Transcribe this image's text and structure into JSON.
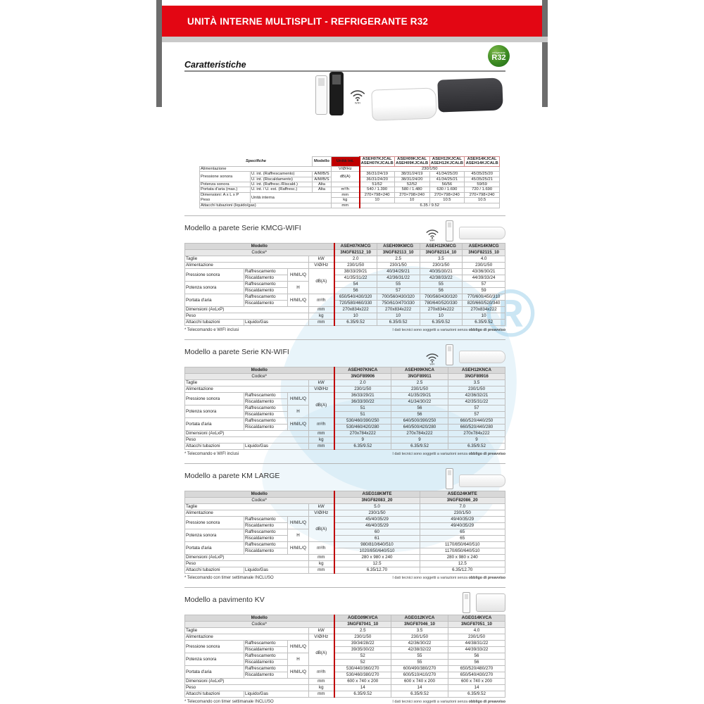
{
  "banner": {
    "title": "UNITÀ INTERNE MULTISPLIT - REFRIGERANTE R32"
  },
  "caratteristiche_title": "Caratteristiche",
  "r32_badge": {
    "small": "refrigerante",
    "big": "R32"
  },
  "wifi_label": "WIFI",
  "colors": {
    "banner_red": "#e30613",
    "table_red": "#c00000",
    "badge_green": "#2e7d1e",
    "watermark_blue": "#aed8ed",
    "header_gray": "#d8d8d8"
  },
  "labels": {
    "modello": "Modello",
    "codice": "Codice*",
    "taglie": "Taglie",
    "kw": "kW",
    "alimentazione": "Alimentazione",
    "vhz": "V/Ø/Hz",
    "pressione": "Pressione sonora",
    "raffrescamento": "Raffrescamento",
    "riscaldamento": "Riscaldamento",
    "hmlq": "H/M/L/Q",
    "dba": "dB(A)",
    "potenza": "Potenza sonora",
    "h": "H",
    "portata": "Portata d'aria",
    "m3h": "m³/h",
    "dimensioni": "Dimensioni (AxLxP)",
    "mm": "mm",
    "peso": "Peso",
    "kg": "kg",
    "attacchi": "Attacchi tubazioni",
    "liquidogas": "Liquido/Gas"
  },
  "spec": {
    "title": "Specifiche",
    "modello": "Modello",
    "unita_int": "Unità int.",
    "models": [
      "ASEH07KJCAL\nASEH07KJCALB",
      "ASEH09KJCAL\nASEH09KJCALB",
      "ASEH12KJCAL\nASEH12KJCALB",
      "ASEH14KJCAL\nASEH14KJCALB"
    ],
    "rows": {
      "alimentazione": {
        "label": "Alimentazione",
        "unit": "V/Ø/Hz",
        "value": "230/1/50"
      },
      "pressione": {
        "label": "Pressione sonora",
        "sub_raff": "U. int. (Raffrescamento)",
        "sub_risc": "U. int. (Riscaldamento)",
        "mode": "A/M/B/S",
        "unit": "dB(A)",
        "raff": [
          "36/31/24/19",
          "38/31/24/19",
          "41/34/25/20",
          "45/35/25/20"
        ],
        "risc": [
          "36/31/24/20",
          "38/31/24/20",
          "41/34/25/21",
          "45/35/25/21"
        ]
      },
      "potenza": {
        "label": "Potenza sonora",
        "sub": "U. int. (Raffresc./Riscald.)",
        "mode": "Alta",
        "values": [
          "51/52",
          "52/52",
          "56/56",
          "59/59"
        ]
      },
      "portata": {
        "label": "Portata d'aria (max.)",
        "sub": "U. int. / U. est. (Raffresc.)",
        "mode": "Alta",
        "unit": "m³/h",
        "values": [
          "540 / 1.390",
          "580 / 1.480",
          "630 / 1.690",
          "720 / 1.690"
        ]
      },
      "dimensioni_peso": {
        "label": "Dimensioni: A x L x P\nPeso",
        "sub": "Unità interna",
        "unit_mm": "mm",
        "unit_kg": "kg",
        "mm_values": [
          "270×798×240",
          "270×798×240",
          "270×798×240",
          "270×798×240"
        ],
        "kg_values": [
          "10",
          "10",
          "10.5",
          "10.5"
        ]
      },
      "attacchi": {
        "label": "Attacchi tubazioni (liquido/gas)",
        "unit": "mm",
        "value": "6.35 / 9.52"
      }
    }
  },
  "tech_note": {
    "prefix": "I dati tecnici sono soggetti a variazioni senza ",
    "bold": "obbligo di preavviso"
  },
  "sections": [
    {
      "title": "Modello a parete Serie KMCG-WIFI",
      "has_wifi_icon": true,
      "floor": false,
      "models": [
        "ASEH07KMCG",
        "ASEH09KMCG",
        "ASEH12KMCG",
        "ASEH14KMCG"
      ],
      "codici": [
        "3NGF82112_10",
        "3NGF82113_10",
        "3NGF82114_10",
        "3NGF82115_10"
      ],
      "taglie": [
        "2.0",
        "2.5",
        "3.5",
        "4.0"
      ],
      "alimentazione": [
        "230/1/50",
        "230/1/50",
        "230/1/50",
        "230/1/50"
      ],
      "pressione_raff": [
        "38/33/29/21",
        "40/34/29/21",
        "40/35/30/21",
        "43/36/30/21"
      ],
      "pressione_risc": [
        "41/35/31/22",
        "42/36/31/22",
        "42/38/33/22",
        "44/39/33/24"
      ],
      "potenza_raff": [
        "54",
        "55",
        "55",
        "57"
      ],
      "potenza_risc": [
        "56",
        "57",
        "56",
        "59"
      ],
      "portata_raff": [
        "650/540/430/320",
        "700/560/430/320",
        "700/560/430/320",
        "770/600/450/310"
      ],
      "portata_risc": [
        "720/580/460/330",
        "750/610/470/330",
        "780/640/520/330",
        "820/660/520/340"
      ],
      "dimensioni": [
        "270x834x222",
        "270x834x222",
        "270x834x222",
        "270x834x222"
      ],
      "peso": [
        "10",
        "10",
        "10",
        "10"
      ],
      "attacchi": [
        "6.35/9.52",
        "6.35/9.52",
        "6.35/9.52",
        "6.35/9.52"
      ],
      "footnote": "* Telecomando e WIFI inclusi"
    },
    {
      "title": "Modello a parete Serie KN-WIFI",
      "has_wifi_icon": true,
      "floor": false,
      "models": [
        "ASEH07KNCA",
        "ASEH09KNCA",
        "ASEH12KNCA"
      ],
      "codici": [
        "3NGF89906",
        "3NGF89911",
        "3NGF89916"
      ],
      "taglie": [
        "2.0",
        "2.5",
        "3.5"
      ],
      "alimentazione": [
        "230/1/50",
        "230/1/50",
        "230/1/50"
      ],
      "pressione_raff": [
        "36/33/29/21",
        "41/35/29/21",
        "42/36/32/21"
      ],
      "pressione_risc": [
        "36/33/30/22",
        "41/34/30/22",
        "42/35/31/22"
      ],
      "potenza_raff": [
        "51",
        "56",
        "57"
      ],
      "potenza_risc": [
        "51",
        "56",
        "57"
      ],
      "portata_raff": [
        "530/460/390/250",
        "640/500/390/250",
        "660/520/440/250"
      ],
      "portata_risc": [
        "530/460/420/280",
        "640/500/420/280",
        "660/520/440/280"
      ],
      "dimensioni": [
        "270x784x222",
        "270x784x222",
        "270x784x222"
      ],
      "peso": [
        "9",
        "9",
        "9"
      ],
      "attacchi": [
        "6.35/9.52",
        "6.35/9.52",
        "6.35/9.52"
      ],
      "footnote": "* Telecomando e WIFI inclusi"
    },
    {
      "title": "Modello a parete KM LARGE",
      "has_wifi_icon": false,
      "floor": false,
      "models": [
        "ASEG18KMTE",
        "ASEG24KMTE"
      ],
      "codici": [
        "3NGF82083_20",
        "3NGF82086_20"
      ],
      "taglie": [
        "5.0",
        "7.0"
      ],
      "alimentazione": [
        "230/1/50",
        "230/1/50"
      ],
      "pressione_raff": [
        "45/40/35/29",
        "49/40/35/29"
      ],
      "pressione_risc": [
        "46/40/35/29",
        "49/40/35/29"
      ],
      "potenza_raff": [
        "60",
        "65"
      ],
      "potenza_risc": [
        "61",
        "65"
      ],
      "portata_raff": [
        "980/810/640/510",
        "1170/850/640/510"
      ],
      "portata_risc": [
        "1020/850/640/510",
        "1170/850/640/510"
      ],
      "dimensioni": [
        "280 x 980 x 240",
        "280 x 980 x 240"
      ],
      "peso": [
        "12.5",
        "12.5"
      ],
      "attacchi": [
        "6.35/12.70",
        "6.35/12.70"
      ],
      "footnote": "* Telecomando con timer settimanale INCLUSO"
    },
    {
      "title": "Modello a pavimento KV",
      "has_wifi_icon": false,
      "floor": true,
      "models": [
        "AGEG09KVCA",
        "AGEG12KVCA",
        "AGEG14KVCA"
      ],
      "codici": [
        "3NGF87041_10",
        "3NGF87046_10",
        "3NGF87051_10"
      ],
      "taglie": [
        "2.5",
        "3.5",
        "4.0"
      ],
      "alimentazione": [
        "230/1/50",
        "230/1/50",
        "230/1/50"
      ],
      "pressione_raff": [
        "39/34/28/22",
        "42/36/30/22",
        "44/38/31/22"
      ],
      "pressione_risc": [
        "39/35/30/22",
        "42/38/32/22",
        "44/39/33/22"
      ],
      "potenza_raff": [
        "52",
        "55",
        "56"
      ],
      "potenza_risc": [
        "52",
        "55",
        "56"
      ],
      "portata_raff": [
        "530/440/360/270",
        "600/490/380/270",
        "650/520/480/270"
      ],
      "portata_risc": [
        "530/460/380/270",
        "600/510/410/270",
        "650/540/430/270"
      ],
      "dimensioni": [
        "600 x 740 x 200",
        "600 x 740 x 200",
        "600 x 740 x 200"
      ],
      "peso": [
        "14",
        "14",
        "14"
      ],
      "attacchi": [
        "6.35/9.52",
        "6.35/9.52",
        "6.35/9.52"
      ],
      "footnote": "* Telecomando con timer settimanale INCLUSO"
    }
  ]
}
